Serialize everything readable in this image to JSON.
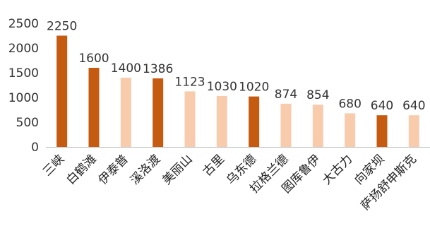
{
  "chart_data": {
    "type": "bar",
    "title": "",
    "xlabel": "",
    "ylabel": "",
    "ylim": [
      0,
      2500
    ],
    "yticks": [
      0,
      500,
      1000,
      1500,
      2000,
      2500
    ],
    "grid": false,
    "legend": "none",
    "colors": {
      "dark": "#c55a11",
      "light": "#f8cbad",
      "axis": "#bfbfbf"
    },
    "categories": [
      "三峡",
      "白鹤滩",
      "伊泰普",
      "溪洛渡",
      "美丽山",
      "古里",
      "乌东德",
      "拉格兰德",
      "图库鲁伊",
      "大古力",
      "向家坝",
      "萨扬舒申斯克"
    ],
    "values": [
      2250,
      1600,
      1400,
      1386,
      1123,
      1030,
      1020,
      874,
      854,
      680,
      640,
      640
    ],
    "data_labels": [
      "2250",
      "1600",
      "1400",
      "1386",
      "1123",
      "1030",
      "1020",
      "874",
      "854",
      "680",
      "640",
      "640"
    ],
    "highlight": [
      true,
      true,
      false,
      true,
      false,
      false,
      true,
      false,
      false,
      false,
      true,
      false
    ]
  }
}
